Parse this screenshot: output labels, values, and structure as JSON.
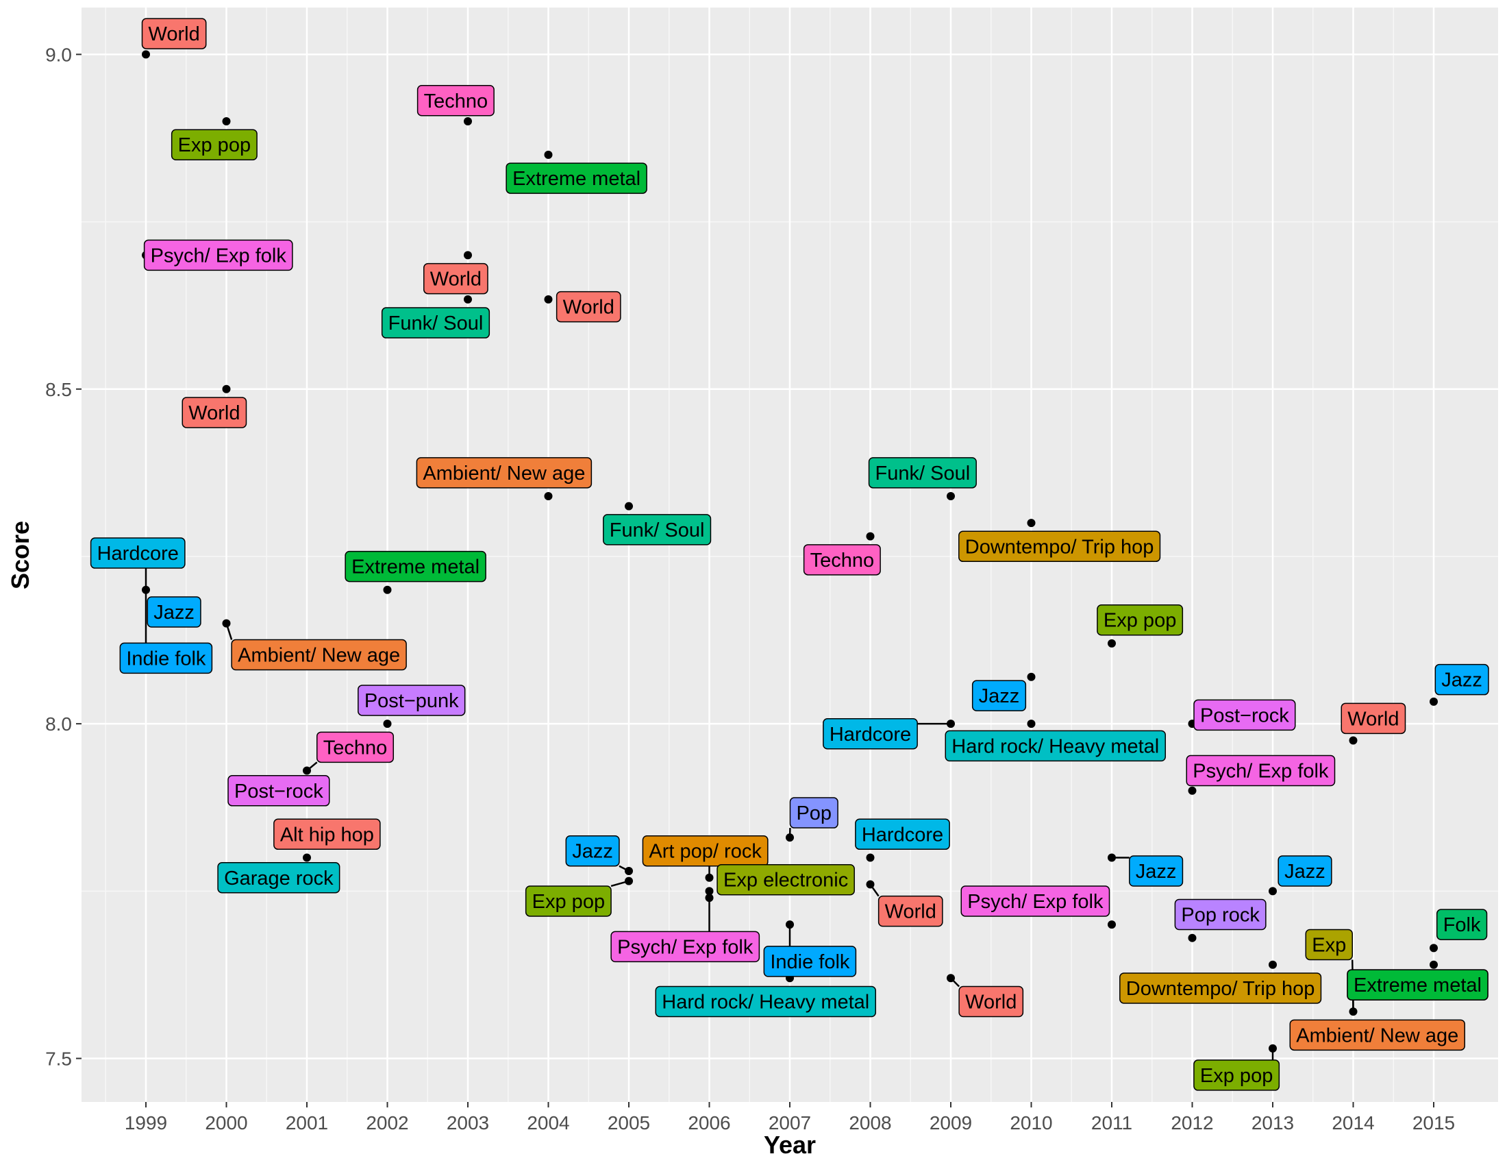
{
  "chart_data": {
    "type": "scatter",
    "title": "",
    "xlabel": "Year",
    "ylabel": "Score",
    "xlim": [
      1998.2,
      2015.8
    ],
    "ylim": [
      7.435,
      9.07
    ],
    "x_ticks": [
      1999,
      2000,
      2001,
      2002,
      2003,
      2004,
      2005,
      2006,
      2007,
      2008,
      2009,
      2010,
      2011,
      2012,
      2013,
      2014,
      2015
    ],
    "y_ticks": [
      7.5,
      8.0,
      8.5,
      9.0
    ],
    "y_tick_labels": [
      "7.5",
      "8.0",
      "8.5",
      "9.0"
    ],
    "grid": true,
    "legend": "none",
    "genre_colors": {
      "World": "#F8766D",
      "Exp pop": "#7CAE00",
      "Techno": "#FF61C3",
      "Extreme metal": "#00BA38",
      "Psych/ Exp folk": "#F564E3",
      "Funk/ Soul": "#00C08B",
      "Ambient/ New age": "#F07F3A",
      "Hardcore": "#00B8E7",
      "Jazz": "#00ABFD",
      "Indie folk": "#00A9FF",
      "Post−punk": "#C77CFF",
      "Post−rock": "#E76BF3",
      "Alt hip hop": "#F8766D",
      "Garage rock": "#00BFC4",
      "Downtempo/ Trip hop": "#CD9600",
      "Hard rock/ Heavy metal": "#00BFC4",
      "Hard rock/ Heavy metal (2)": "#00B0B8",
      "Art pop/ rock": "#E08B00",
      "Exp electronic": "#8FAA00",
      "Pop": "#8494FF",
      "Pop rock": "#B983FF",
      "Exp": "#ABA300",
      "Folk": "#00BE67"
    },
    "points": [
      {
        "x": 1999,
        "y": 9.0,
        "label": "World",
        "lx": 1999.35,
        "ly": 9.031
      },
      {
        "x": 2000,
        "y": 8.9,
        "label": "Exp pop",
        "lx": 1999.85,
        "ly": 8.865
      },
      {
        "x": 1999,
        "y": 8.7,
        "label": "Psych/ Exp folk",
        "lx": 1999.9,
        "ly": 8.7
      },
      {
        "x": 2000,
        "y": 8.5,
        "label": "World",
        "lx": 1999.85,
        "ly": 8.465
      },
      {
        "x": 2003,
        "y": 8.9,
        "label": "Techno",
        "lx": 2002.85,
        "ly": 8.931
      },
      {
        "x": 2004,
        "y": 8.85,
        "label": "Extreme metal",
        "lx": 2004.35,
        "ly": 8.815
      },
      {
        "x": 2003,
        "y": 8.7,
        "label": "World",
        "lx": 2002.85,
        "ly": 8.665
      },
      {
        "x": 2003,
        "y": 8.634,
        "label": "Funk/ Soul",
        "lx": 2002.6,
        "ly": 8.599
      },
      {
        "x": 2004,
        "y": 8.634,
        "label": "World",
        "lx": 2004.5,
        "ly": 8.623
      },
      {
        "x": 2004,
        "y": 8.34,
        "label": "Ambient/ New age",
        "lx": 2003.45,
        "ly": 8.375
      },
      {
        "x": 2005,
        "y": 8.325,
        "label": "Funk/ Soul",
        "lx": 2005.35,
        "ly": 8.29
      },
      {
        "x": 1999,
        "y": 8.2,
        "label": "Hardcore",
        "lx": 1998.9,
        "ly": 8.255
      },
      {
        "x": 1999,
        "y": 8.2,
        "label": "Jazz",
        "lx": 1999.35,
        "ly": 8.167
      },
      {
        "x": 1999,
        "y": 8.2,
        "label": "Indie folk",
        "lx": 1999.25,
        "ly": 8.098
      },
      {
        "x": 2000,
        "y": 8.15,
        "label": "Ambient/ New age",
        "lx": 2001.15,
        "ly": 8.103
      },
      {
        "x": 2002,
        "y": 8.2,
        "label": "Extreme metal",
        "lx": 2002.35,
        "ly": 8.235
      },
      {
        "x": 2002,
        "y": 8.0,
        "label": "Post−punk",
        "lx": 2002.3,
        "ly": 8.035
      },
      {
        "x": 2001,
        "y": 7.93,
        "label": "Techno",
        "lx": 2001.6,
        "ly": 7.965
      },
      {
        "x": 2001,
        "y": 7.93,
        "label": "Post−rock",
        "lx": 2000.65,
        "ly": 7.9
      },
      {
        "x": 2001,
        "y": 7.8,
        "label": "Alt hip hop",
        "lx": 2001.25,
        "ly": 7.835
      },
      {
        "x": 2001,
        "y": 7.8,
        "label": "Garage rock",
        "lx": 2000.65,
        "ly": 7.77
      },
      {
        "x": 2005,
        "y": 7.78,
        "label": "Jazz",
        "lx": 2004.55,
        "ly": 7.81
      },
      {
        "x": 2005,
        "y": 7.765,
        "label": "Exp pop",
        "lx": 2004.25,
        "ly": 7.735
      },
      {
        "x": 2006,
        "y": 7.77,
        "label": "Art pop/ rock",
        "lx": 2005.95,
        "ly": 7.81
      },
      {
        "x": 2006,
        "y": 7.75,
        "label": "Exp electronic",
        "lx": 2006.95,
        "ly": 7.767
      },
      {
        "x": 2006,
        "y": 7.74,
        "label": "Psych/ Exp folk",
        "lx": 2005.7,
        "ly": 7.667
      },
      {
        "x": 2007,
        "y": 7.83,
        "label": "Pop",
        "lx": 2007.3,
        "ly": 7.867
      },
      {
        "x": 2007,
        "y": 7.7,
        "label": "Indie folk",
        "lx": 2007.25,
        "ly": 7.645
      },
      {
        "x": 2007,
        "y": 7.62,
        "label": "Hard rock/ Heavy metal",
        "lx": 2006.7,
        "ly": 7.585
      },
      {
        "x": 2008,
        "y": 8.28,
        "label": "Techno",
        "lx": 2007.65,
        "ly": 8.245
      },
      {
        "x": 2009,
        "y": 8.34,
        "label": "Funk/ Soul",
        "lx": 2008.65,
        "ly": 8.375
      },
      {
        "x": 2010,
        "y": 8.3,
        "label": "Downtempo/ Trip hop",
        "lx": 2010.35,
        "ly": 8.265
      },
      {
        "x": 2008,
        "y": 7.8,
        "label": "Hardcore",
        "lx": 2008.4,
        "ly": 7.835
      },
      {
        "x": 2008,
        "y": 7.76,
        "label": "World",
        "lx": 2008.5,
        "ly": 7.72
      },
      {
        "x": 2009,
        "y": 7.62,
        "label": "World",
        "lx": 2009.5,
        "ly": 7.585
      },
      {
        "x": 2009,
        "y": 8.0,
        "label": "Hardcore",
        "lx": 2008.0,
        "ly": 7.985
      },
      {
        "x": 2010,
        "y": 8.07,
        "label": "Jazz",
        "lx": 2009.6,
        "ly": 8.042
      },
      {
        "x": 2010,
        "y": 8.0,
        "label": "Hard rock/ Heavy metal",
        "lx": 2010.3,
        "ly": 7.967
      },
      {
        "x": 2011,
        "y": 8.12,
        "label": "Exp pop",
        "lx": 2011.35,
        "ly": 8.155
      },
      {
        "x": 2011,
        "y": 7.8,
        "label": "Jazz",
        "lx": 2011.55,
        "ly": 7.78
      },
      {
        "x": 2011,
        "y": 7.7,
        "label": "Psych/ Exp folk",
        "lx": 2010.05,
        "ly": 7.735
      },
      {
        "x": 2012,
        "y": 8.0,
        "label": "Post−rock",
        "lx": 2012.65,
        "ly": 8.013
      },
      {
        "x": 2012,
        "y": 7.9,
        "label": "Psych/ Exp folk",
        "lx": 2012.85,
        "ly": 7.93
      },
      {
        "x": 2012,
        "y": 7.68,
        "label": "Pop rock",
        "lx": 2012.35,
        "ly": 7.715
      },
      {
        "x": 2013,
        "y": 7.75,
        "label": "Jazz",
        "lx": 2013.4,
        "ly": 7.78
      },
      {
        "x": 2013,
        "y": 7.64,
        "label": "Downtempo/ Trip hop",
        "lx": 2012.35,
        "ly": 7.605
      },
      {
        "x": 2013,
        "y": 7.515,
        "label": "Exp pop",
        "lx": 2012.55,
        "ly": 7.475
      },
      {
        "x": 2014,
        "y": 7.57,
        "label": "Ambient/ New age",
        "lx": 2014.3,
        "ly": 7.535
      },
      {
        "x": 2014,
        "y": 7.57,
        "label": "Exp",
        "lx": 2013.7,
        "ly": 7.67
      },
      {
        "x": 2014,
        "y": 7.57,
        "label": "Extreme metal",
        "lx": 2014.8,
        "ly": 7.61
      },
      {
        "x": 2014,
        "y": 7.975,
        "label": "World",
        "lx": 2014.25,
        "ly": 8.008
      },
      {
        "x": 2015,
        "y": 8.033,
        "label": "Jazz",
        "lx": 2015.35,
        "ly": 8.066
      },
      {
        "x": 2015,
        "y": 7.665,
        "label": "Folk",
        "lx": 2015.35,
        "ly": 7.7
      },
      {
        "x": 2015,
        "y": 7.64,
        "label": "Extreme metal",
        "lx": 2014.8,
        "ly": 7.61
      }
    ]
  }
}
